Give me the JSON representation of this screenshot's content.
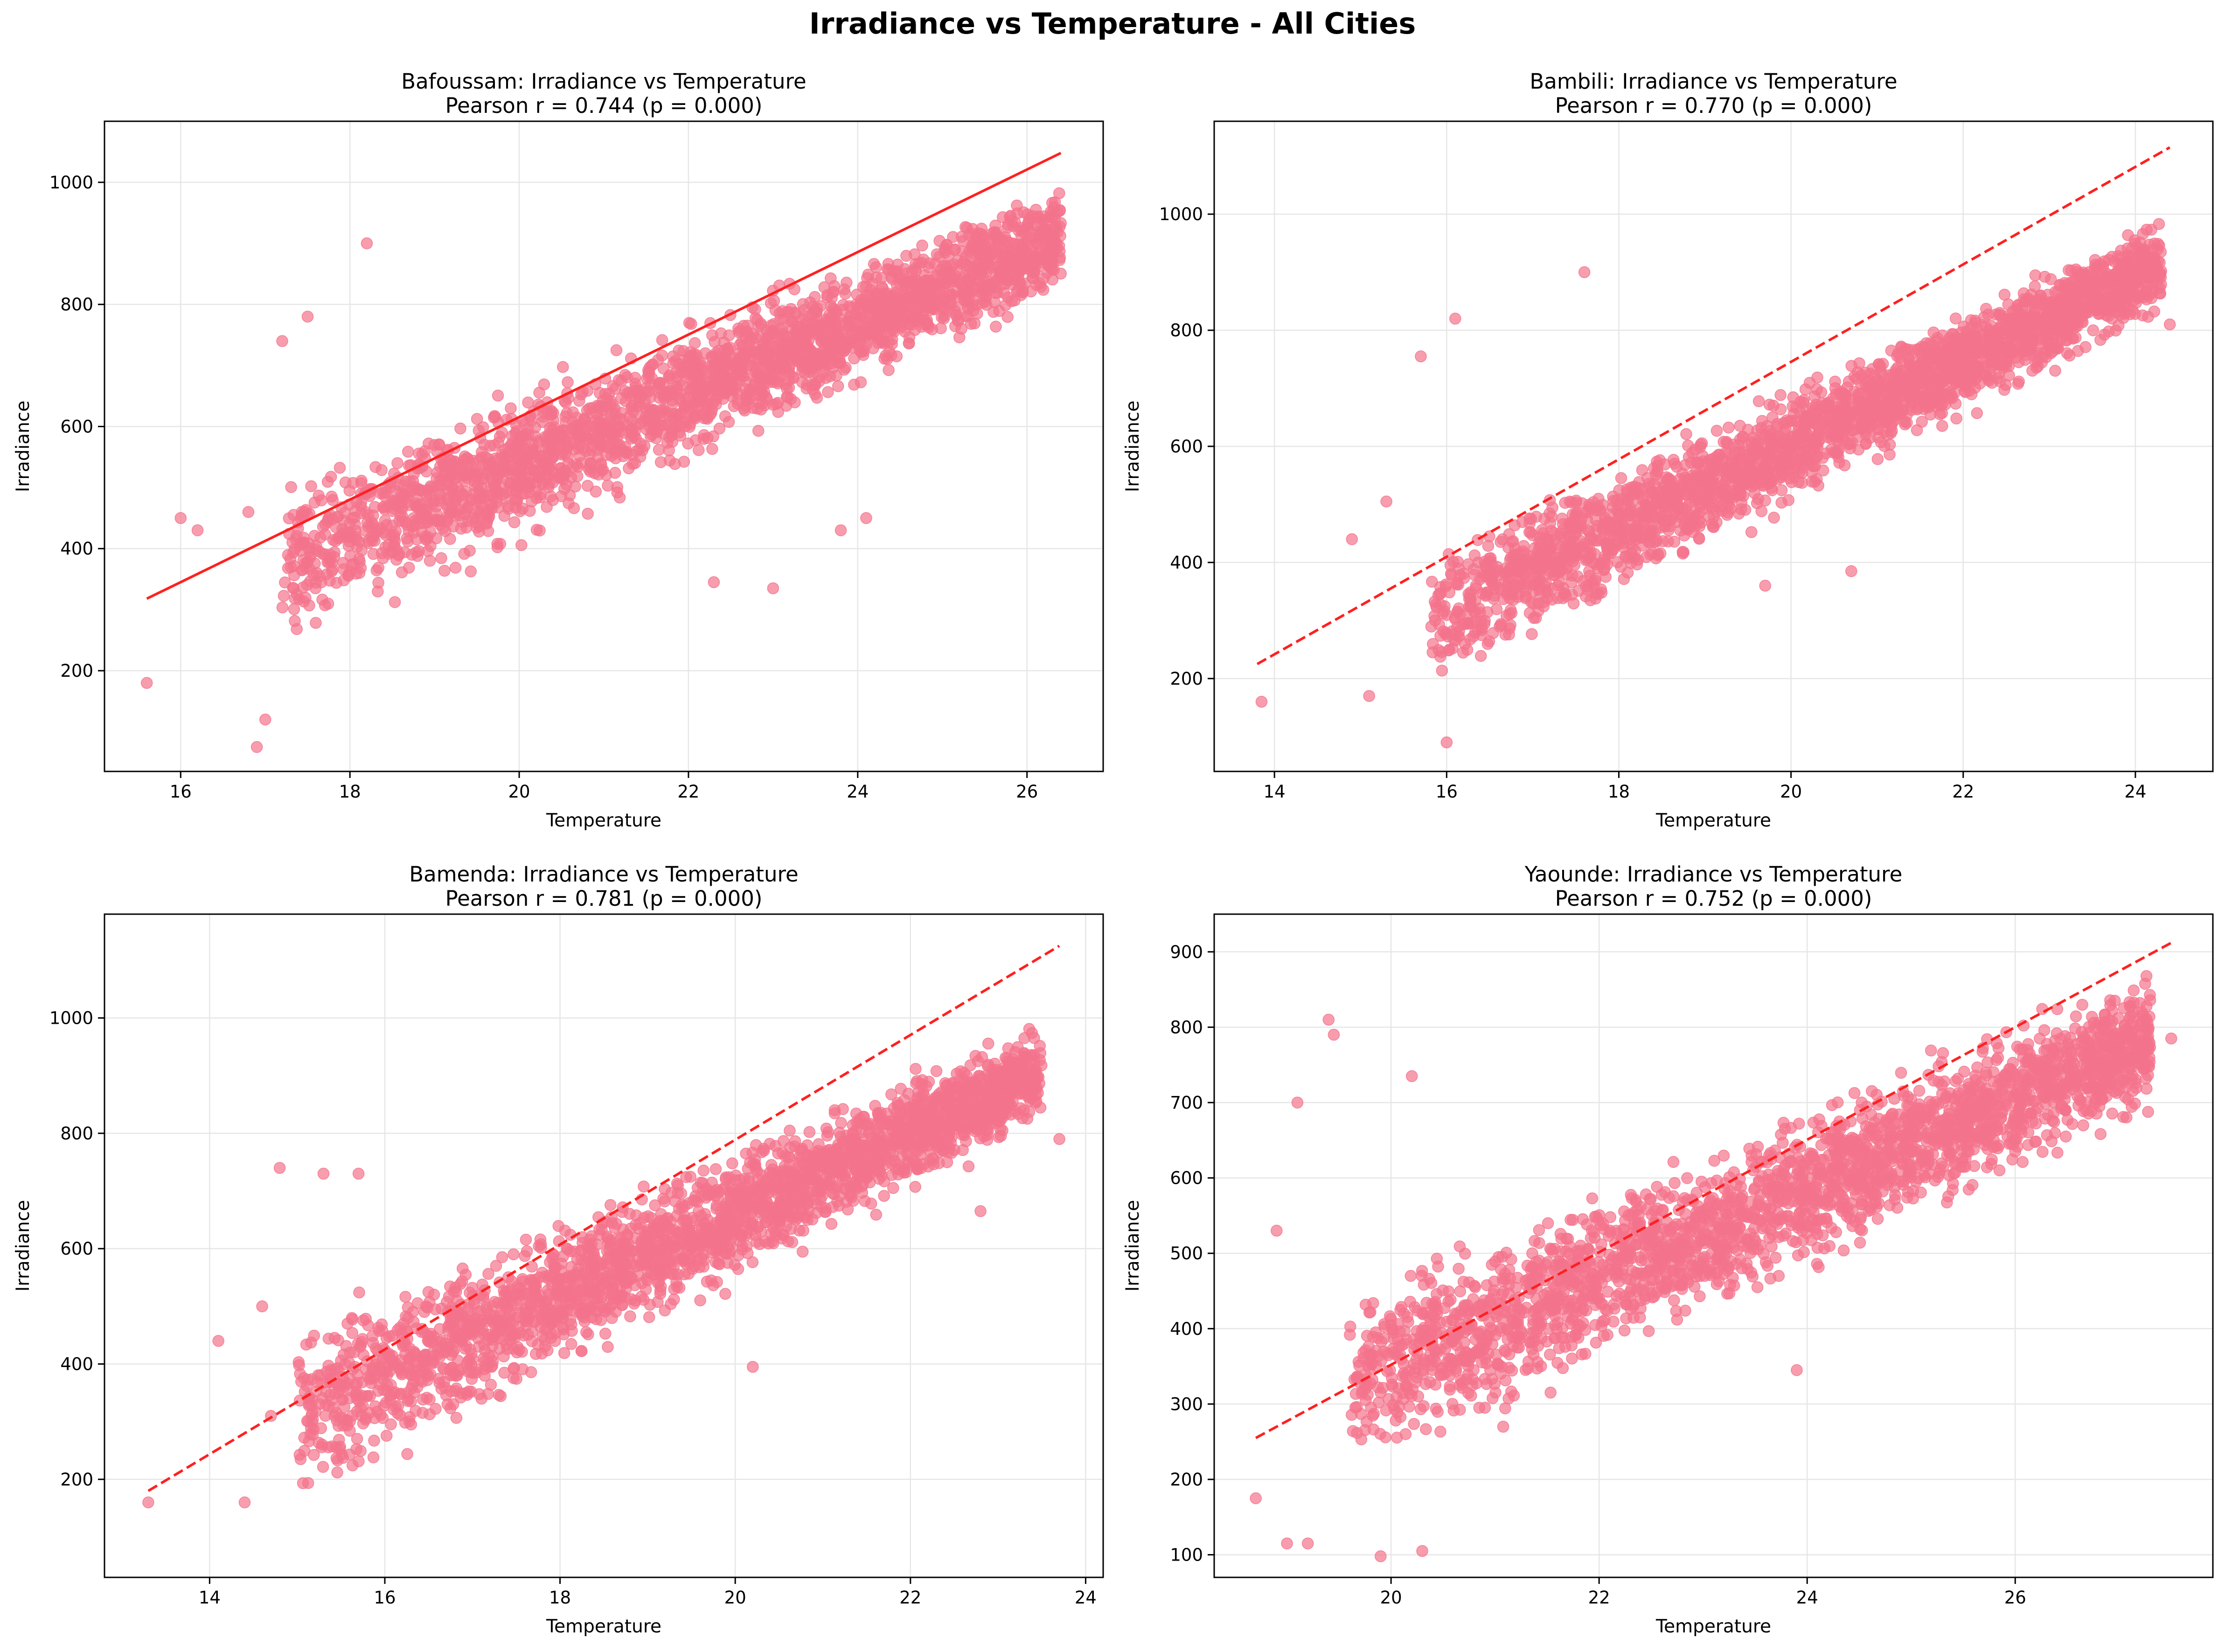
{
  "figure": {
    "title": "Irradiance vs Temperature - All Cities"
  },
  "style": {
    "point_color": "#f4738c",
    "line_color": "#ff2020",
    "grid_color": "#e6e6e6"
  },
  "chart_data": [
    {
      "type": "scatter",
      "title": "Bafoussam: Irradiance vs Temperature",
      "subtitle": "Pearson r = 0.744 (p = 0.000)",
      "xlabel": "Temperature",
      "ylabel": "Irradiance",
      "xlim": [
        15.1,
        26.9
      ],
      "ylim": [
        35,
        1100
      ],
      "xticks": [
        16,
        18,
        20,
        22,
        24,
        26
      ],
      "yticks": [
        200,
        400,
        600,
        800,
        1000
      ],
      "grid": true,
      "fit_line": {
        "x": [
          15.6,
          26.4
        ],
        "y": [
          318,
          1048
        ],
        "style": "solid"
      },
      "cloud": {
        "x_min": 17.2,
        "x_max": 26.4,
        "low_start": 230,
        "low_end": 820,
        "high_start": 520,
        "high_end": 1000,
        "count": 2600
      },
      "outliers": {
        "x": [
          15.6,
          16.0,
          16.2,
          16.8,
          16.9,
          17.0,
          17.2,
          17.5,
          18.2,
          22.3,
          23.0,
          23.8,
          22.5,
          24.1
        ],
        "y": [
          180,
          450,
          430,
          460,
          75,
          120,
          740,
          780,
          900,
          345,
          335,
          430,
          660,
          450
        ]
      }
    },
    {
      "type": "scatter",
      "title": "Bambili: Irradiance vs Temperature",
      "subtitle": "Pearson r = 0.770 (p = 0.000)",
      "xlabel": "Temperature",
      "ylabel": "Irradiance",
      "xlim": [
        13.3,
        24.9
      ],
      "ylim": [
        40,
        1160
      ],
      "xticks": [
        14,
        16,
        18,
        20,
        22,
        24
      ],
      "yticks": [
        200,
        400,
        600,
        800,
        1000
      ],
      "grid": true,
      "fit_line": {
        "x": [
          13.8,
          24.4
        ],
        "y": [
          225,
          1115
        ],
        "style": "dashed"
      },
      "cloud": {
        "x_min": 15.8,
        "x_max": 24.3,
        "low_start": 180,
        "low_end": 830,
        "high_start": 420,
        "high_end": 990,
        "count": 2600
      },
      "outliers": {
        "x": [
          13.85,
          14.9,
          15.3,
          15.7,
          16.1,
          17.6,
          19.7,
          20.7,
          24.4,
          16.0,
          15.1
        ],
        "y": [
          160,
          440,
          505,
          755,
          820,
          900,
          360,
          385,
          810,
          90,
          170
        ]
      }
    },
    {
      "type": "scatter",
      "title": "Bamenda: Irradiance vs Temperature",
      "subtitle": "Pearson r = 0.781 (p = 0.000)",
      "xlabel": "Temperature",
      "ylabel": "Irradiance",
      "xlim": [
        12.8,
        24.2
      ],
      "ylim": [
        30,
        1180
      ],
      "xticks": [
        14,
        16,
        18,
        20,
        22,
        24
      ],
      "yticks": [
        200,
        400,
        600,
        800,
        1000
      ],
      "grid": true,
      "fit_line": {
        "x": [
          13.3,
          23.7
        ],
        "y": [
          180,
          1125
        ],
        "style": "dashed"
      },
      "cloud": {
        "x_min": 15.0,
        "x_max": 23.5,
        "low_start": 140,
        "low_end": 820,
        "high_start": 480,
        "high_end": 990,
        "count": 2600
      },
      "outliers": {
        "x": [
          13.3,
          14.1,
          14.4,
          14.6,
          14.8,
          15.3,
          15.7,
          20.2,
          23.7,
          22.8,
          14.7
        ],
        "y": [
          160,
          440,
          160,
          500,
          740,
          730,
          730,
          395,
          790,
          665,
          310
        ]
      }
    },
    {
      "type": "scatter",
      "title": "Yaounde: Irradiance vs Temperature",
      "subtitle": "Pearson r = 0.752 (p = 0.000)",
      "xlabel": "Temperature",
      "ylabel": "Irradiance",
      "xlim": [
        18.3,
        27.9
      ],
      "ylim": [
        70,
        950
      ],
      "xticks": [
        20,
        22,
        24,
        26
      ],
      "yticks": [
        100,
        200,
        300,
        400,
        500,
        600,
        700,
        800,
        900
      ],
      "grid": true,
      "fit_line": {
        "x": [
          18.7,
          27.5
        ],
        "y": [
          255,
          912
        ],
        "style": "dashed"
      },
      "cloud": {
        "x_min": 19.6,
        "x_max": 27.3,
        "low_start": 190,
        "low_end": 690,
        "high_start": 460,
        "high_end": 870,
        "count": 2600
      },
      "outliers": {
        "x": [
          18.7,
          18.9,
          19.2,
          19.4,
          19.45,
          19.1,
          19.9,
          20.2,
          23.9,
          26.0,
          27.5,
          19.0,
          20.3
        ],
        "y": [
          175,
          530,
          115,
          810,
          790,
          700,
          98,
          735,
          345,
          635,
          785,
          115,
          105
        ]
      }
    }
  ]
}
